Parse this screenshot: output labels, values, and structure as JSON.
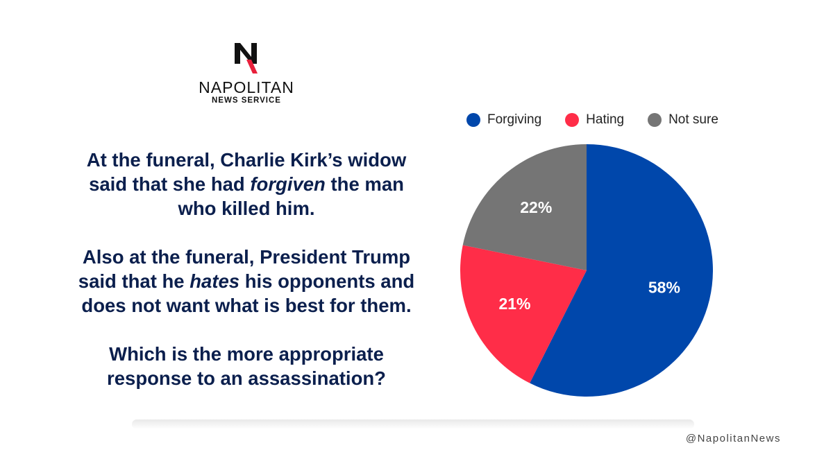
{
  "logo": {
    "name": "NAPOLITAN",
    "subtitle": "NEWS SERVICE",
    "icon": "napolitan-n-logo"
  },
  "question": {
    "part1_a": "At the funeral, Charlie Kirk’s widow said that she had ",
    "part1_em": "forgiven",
    "part1_b": " the man who killed him.",
    "part2_a": "Also at the funeral, President Trump said that he ",
    "part2_em": "hates",
    "part2_b": " his opponents and does not want what is best for them.",
    "part3": "Which is the more appropriate response to an assassination?"
  },
  "chart_data": {
    "type": "pie",
    "categories": [
      "Forgiving",
      "Hating",
      "Not sure"
    ],
    "values": [
      58,
      21,
      22
    ],
    "data_labels": [
      "58%",
      "21%",
      "22%"
    ],
    "colors": [
      "#0047ab",
      "#ff2d48",
      "#757575"
    ],
    "legend_placement": "top",
    "start": "12 o'clock, clockwise"
  },
  "footer": {
    "handle": "@NapolitanNews"
  }
}
